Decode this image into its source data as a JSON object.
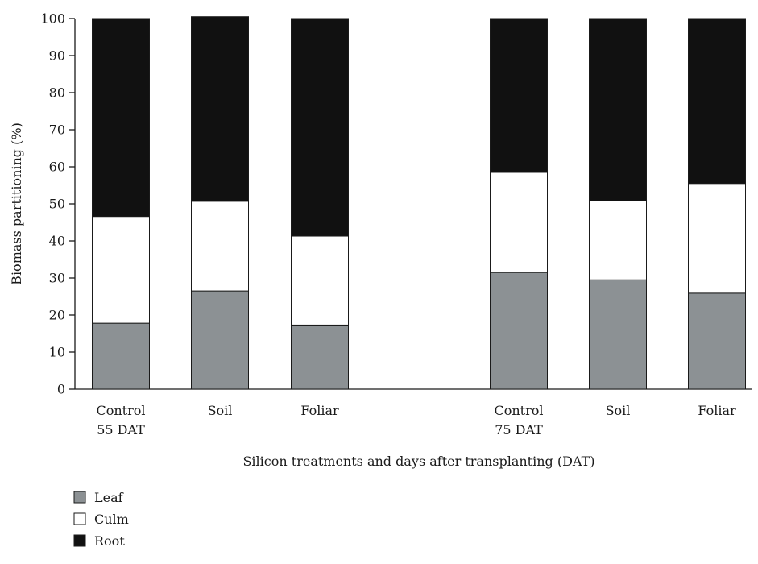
{
  "chart_data": {
    "type": "bar",
    "stacked": true,
    "categories": [
      [
        "Control",
        "55 DAT"
      ],
      [
        "Soil"
      ],
      [
        "Foliar"
      ],
      [
        "Control",
        "75 DAT"
      ],
      [
        "Soil"
      ],
      [
        "Foliar"
      ]
    ],
    "series": [
      {
        "name": "Leaf",
        "color": "#8c9194",
        "values": [
          17.8,
          26.5,
          17.3,
          31.5,
          29.5,
          25.9
        ]
      },
      {
        "name": "Culm",
        "color": "#ffffff",
        "values": [
          28.8,
          24.2,
          24.0,
          27.0,
          21.3,
          29.6
        ]
      },
      {
        "name": "Root",
        "color": "#111111",
        "values": [
          53.4,
          49.8,
          58.7,
          41.5,
          49.2,
          44.5
        ]
      }
    ],
    "title": "",
    "xlabel": "Silicon treatments and days after transplanting (DAT)",
    "ylabel": "Biomass partitioning (%)",
    "ylim": [
      0,
      100
    ],
    "yticks": [
      0,
      10,
      20,
      30,
      40,
      50,
      60,
      70,
      80,
      90,
      100
    ],
    "grid": false,
    "legend_position": "bottom-left"
  }
}
